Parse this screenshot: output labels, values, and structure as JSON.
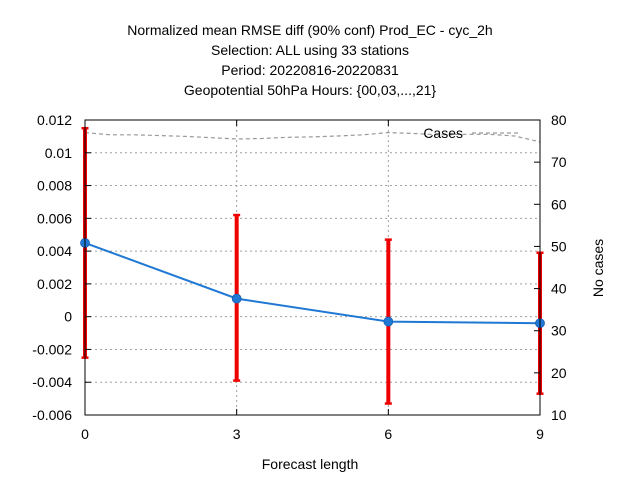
{
  "chart_data": {
    "type": "line",
    "title_lines": [
      "Normalized mean RMSE diff (90% conf) Prod_EC - cyc_2h",
      "Selection: ALL using    33 stations",
      "Period: 20220816-20220831",
      "Geopotential 50hPa   Hours: {00,03,...,21}"
    ],
    "xlabel": "Forecast length",
    "ylabel_left": "",
    "ylabel_right": "No cases",
    "xlim": [
      0,
      9
    ],
    "ylim_left": [
      -0.006,
      0.012
    ],
    "ylim_right": [
      10,
      80
    ],
    "x_ticks": [
      0,
      3,
      6,
      9
    ],
    "y_ticks_left": [
      -0.006,
      -0.004,
      -0.002,
      0,
      0.002,
      0.004,
      0.006,
      0.008,
      0.01,
      0.012
    ],
    "y_tick_labels_left": [
      "-0.006",
      "-0.004",
      "-0.002",
      "0",
      "0.002",
      "0.004",
      "0.006",
      "0.008",
      "0.01",
      "0.012"
    ],
    "y_ticks_right": [
      10,
      20,
      30,
      40,
      50,
      60,
      70,
      80
    ],
    "y_tick_labels_right": [
      "10",
      "20",
      "30",
      "40",
      "50",
      "60",
      "70",
      "80"
    ],
    "grid": true,
    "series": [
      {
        "axis": "left",
        "style": "line-marker",
        "color": "#1f78d4",
        "x": [
          0,
          3,
          6,
          9
        ],
        "y": [
          0.0045,
          0.0011,
          -0.0003,
          -0.0004
        ]
      },
      {
        "axis": "left",
        "style": "errorbar",
        "color": "#ee0000",
        "x": [
          0,
          3,
          6,
          9
        ],
        "lower": [
          -0.0025,
          -0.0039,
          -0.0053,
          -0.0047
        ],
        "upper": [
          0.0115,
          0.0062,
          0.0047,
          0.0039
        ]
      },
      {
        "name": "Cases",
        "axis": "right",
        "style": "dashed",
        "color": "#999999",
        "x": [
          0,
          0.5,
          1,
          1.5,
          2,
          2.5,
          3,
          3.5,
          4,
          4.5,
          5,
          5.5,
          6,
          6.5,
          7,
          7.5,
          8,
          8.5,
          9
        ],
        "y": [
          77,
          76.5,
          76.5,
          76.3,
          76.1,
          75.8,
          75.5,
          75.6,
          75.9,
          76,
          76.2,
          76.5,
          77,
          76.8,
          76.5,
          76.6,
          76.6,
          76.2,
          74.8
        ]
      }
    ],
    "legend": {
      "position": "top-right",
      "entries": [
        "Cases"
      ]
    }
  }
}
